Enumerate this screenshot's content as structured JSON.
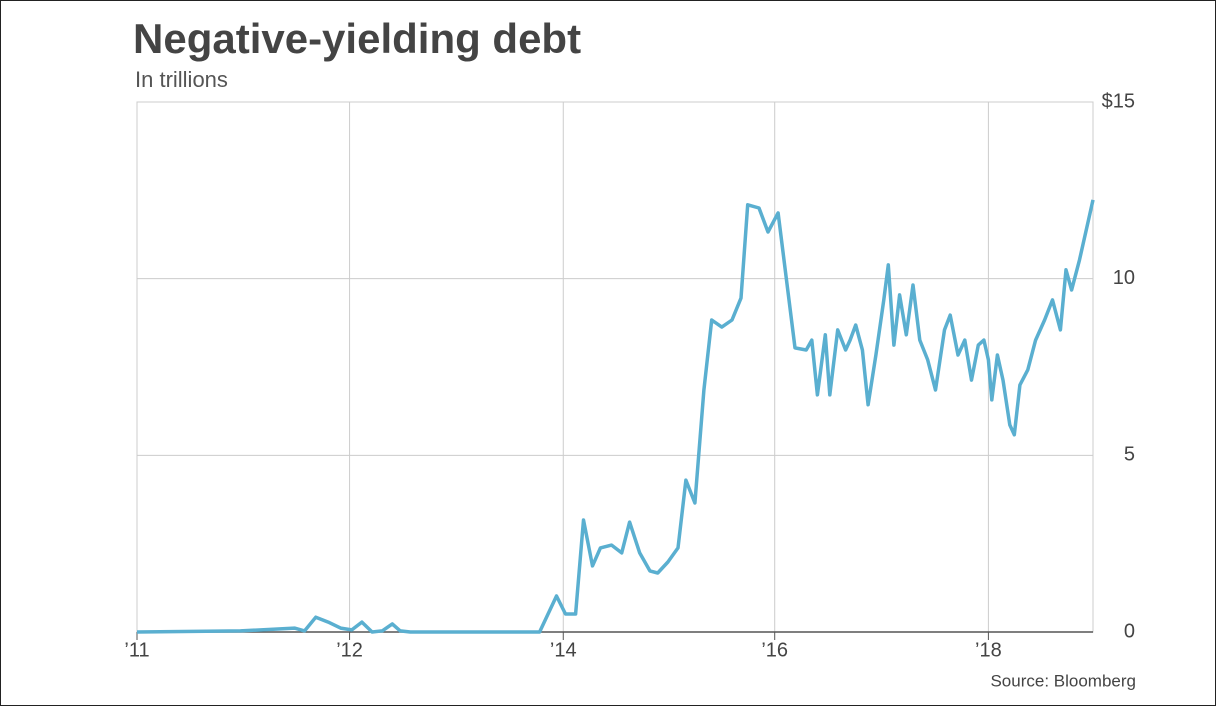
{
  "chart_data": {
    "type": "line",
    "title": "Negative-yielding debt",
    "subtitle": "In trillions",
    "source": "Source: Bloomberg",
    "x": [
      2011.0,
      2011.92,
      2012.4,
      2012.49,
      2012.59,
      2012.7,
      2012.81,
      2012.91,
      2013.0,
      2013.09,
      2013.18,
      2013.27,
      2013.34,
      2013.43,
      2014.05,
      2014.58,
      2014.73,
      2014.81,
      2014.9,
      2014.97,
      2015.05,
      2015.12,
      2015.22,
      2015.31,
      2015.38,
      2015.47,
      2015.56,
      2015.63,
      2015.72,
      2015.81,
      2015.88,
      2015.96,
      2016.04,
      2016.11,
      2016.2,
      2016.29,
      2016.37,
      2016.43,
      2016.53,
      2016.61,
      2016.7,
      2016.85,
      2016.95,
      2017.0,
      2017.05,
      2017.12,
      2017.16,
      2017.23,
      2017.3,
      2017.34,
      2017.39,
      2017.45,
      2017.5,
      2017.57,
      2017.64,
      2017.68,
      2017.73,
      2017.78,
      2017.84,
      2017.9,
      2017.96,
      2018.03,
      2018.1,
      2018.18,
      2018.23,
      2018.3,
      2018.36,
      2018.42,
      2018.48,
      2018.53,
      2018.57,
      2018.6,
      2018.65,
      2018.7,
      2018.76,
      2018.8,
      2018.85,
      2018.92,
      2018.99,
      2019.07,
      2019.14,
      2019.21,
      2019.26,
      2019.31,
      2019.38,
      2019.46,
      2019.5
    ],
    "series": [
      {
        "color": "#5aafd0",
        "values": [
          0,
          0.03,
          0.11,
          0.03,
          0.42,
          0.28,
          0.11,
          0.06,
          0.28,
          0,
          0.03,
          0.23,
          0.03,
          0,
          0,
          0,
          1.02,
          0.51,
          0.51,
          3.17,
          1.87,
          2.38,
          2.46,
          2.24,
          3.11,
          2.24,
          1.73,
          1.67,
          1.98,
          2.38,
          4.3,
          3.65,
          6.85,
          8.83,
          8.63,
          8.83,
          9.45,
          12.09,
          12.0,
          11.32,
          11.86,
          8.04,
          7.98,
          8.26,
          6.71,
          8.41,
          6.71,
          8.55,
          7.98,
          8.26,
          8.69,
          7.98,
          6.43,
          7.84,
          9.4,
          10.39,
          8.12,
          9.54,
          8.41,
          9.82,
          8.26,
          7.7,
          6.85,
          8.55,
          8.97,
          7.84,
          8.26,
          7.13,
          8.12,
          8.26,
          7.7,
          6.57,
          7.84,
          7.13,
          5.86,
          5.58,
          6.99,
          7.42,
          8.26,
          8.83,
          9.4,
          8.55,
          10.25,
          9.68,
          10.53,
          11.66,
          12.23
        ]
      }
    ],
    "xlim": [
      2011.0,
      2019.5
    ],
    "xticks": [
      {
        "value": 2011.0,
        "label": "’11"
      },
      {
        "value": 2012.89,
        "label": "’12"
      },
      {
        "value": 2014.79,
        "label": "’14"
      },
      {
        "value": 2016.67,
        "label": "’16"
      },
      {
        "value": 2018.57,
        "label": "’18"
      }
    ],
    "ylim": [
      0,
      15
    ],
    "yticks": [
      0,
      5,
      10,
      {
        "value": 15,
        "label": "$15"
      }
    ],
    "grid": true
  }
}
